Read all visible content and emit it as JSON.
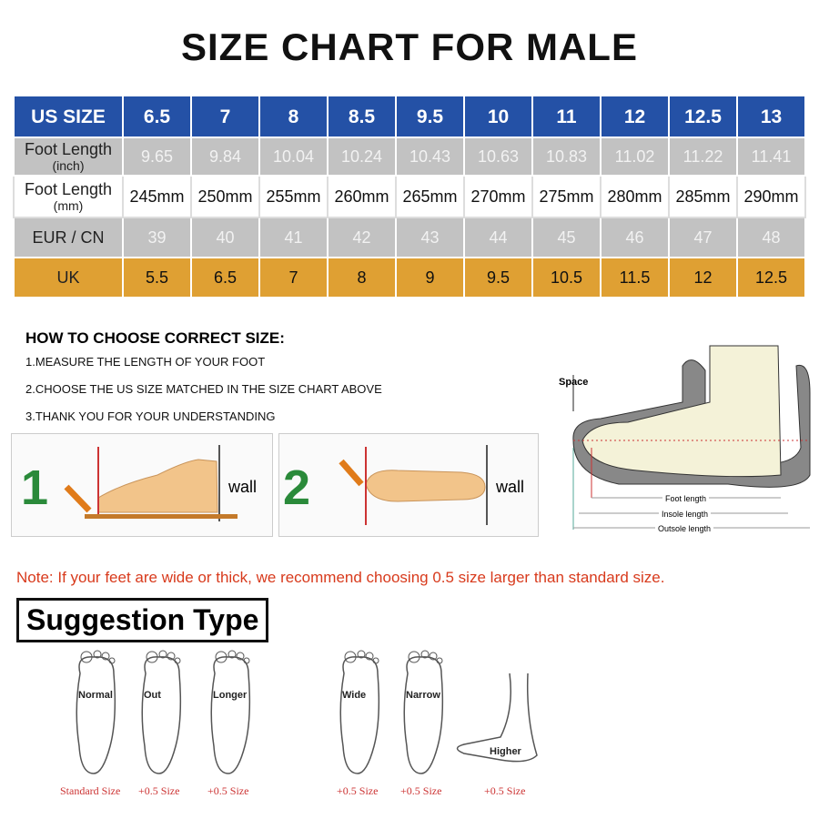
{
  "title": "SIZE CHART FOR MALE",
  "table": {
    "rows": [
      {
        "label": "US SIZE",
        "sub": "",
        "values": [
          "6.5",
          "7",
          "8",
          "8.5",
          "9.5",
          "10",
          "11",
          "12",
          "12.5",
          "13"
        ]
      },
      {
        "label": "Foot Length",
        "sub": "(inch)",
        "values": [
          "9.65",
          "9.84",
          "10.04",
          "10.24",
          "10.43",
          "10.63",
          "10.83",
          "11.02",
          "11.22",
          "11.41"
        ]
      },
      {
        "label": "Foot Length",
        "sub": "(mm)",
        "values": [
          "245mm",
          "250mm",
          "255mm",
          "260mm",
          "265mm",
          "270mm",
          "275mm",
          "280mm",
          "285mm",
          "290mm"
        ]
      },
      {
        "label": "EUR / CN",
        "sub": "",
        "values": [
          "39",
          "40",
          "41",
          "42",
          "43",
          "44",
          "45",
          "46",
          "47",
          "48"
        ]
      },
      {
        "label": "UK",
        "sub": "",
        "values": [
          "5.5",
          "6.5",
          "7",
          "8",
          "9",
          "9.5",
          "10.5",
          "11.5",
          "12",
          "12.5"
        ]
      }
    ]
  },
  "how": {
    "heading": "HOW TO CHOOSE CORRECT SIZE:",
    "steps": [
      "1.MEASURE THE LENGTH OF YOUR FOOT",
      "2.CHOOSE THE US SIZE MATCHED IN THE SIZE CHART ABOVE",
      "3.THANK YOU FOR YOUR UNDERSTANDING"
    ]
  },
  "measure": {
    "step1_num": "1",
    "step2_num": "2",
    "wall": "wall"
  },
  "diagram": {
    "space": "Space",
    "foot_length": "Foot length",
    "insole_length": "Insole length",
    "outsole_length": "Outsole length"
  },
  "note": "Note: If your feet are wide or thick, we recommend choosing 0.5 size larger than standard size.",
  "suggestion": {
    "heading": "Suggestion Type",
    "feet": [
      {
        "type": "Normal",
        "size": "Standard Size"
      },
      {
        "type": "Out",
        "size": "+0.5 Size"
      },
      {
        "type": "Longer",
        "size": "+0.5 Size"
      },
      {
        "type": "Wide",
        "size": "+0.5 Size"
      },
      {
        "type": "Narrow",
        "size": "+0.5 Size"
      },
      {
        "type": "Higher",
        "size": "+0.5 Size"
      }
    ]
  },
  "colors": {
    "header": "#2451a6",
    "gray": "#c2c2c2",
    "uk": "#dfa033",
    "note": "#d83a1c"
  }
}
